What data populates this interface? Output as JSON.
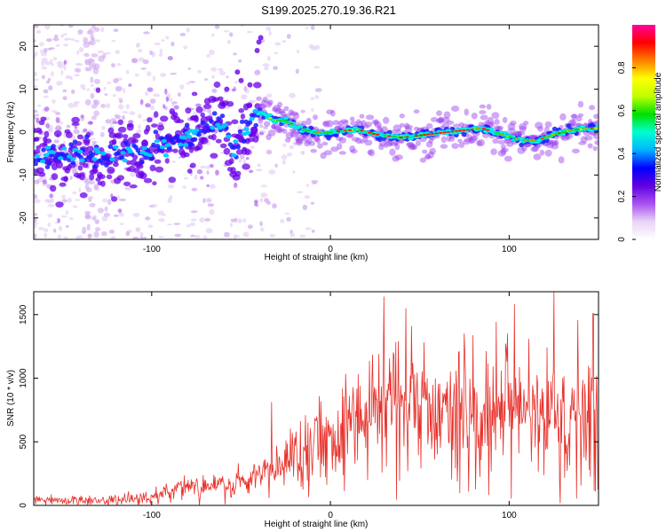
{
  "title": "S199.2025.270.19.36.R21",
  "chart_data": [
    {
      "type": "heatmap",
      "xlabel": "Height of straight line (km)",
      "ylabel": "Frequency (Hz)",
      "xlim": [
        -166,
        150
      ],
      "ylim": [
        -25,
        25
      ],
      "xticks": [
        -100,
        0,
        100
      ],
      "yticks": [
        -20,
        -10,
        0,
        10,
        20
      ],
      "colorbar": {
        "label": "Normalized spectral amplitude",
        "range": [
          0,
          1
        ],
        "ticks": [
          0,
          0.2,
          0.4,
          0.6,
          0.8
        ],
        "colors": [
          "#ffffff",
          "#e8d4f6",
          "#a850f0",
          "#6000e0",
          "#0000ff",
          "#00b4ff",
          "#00ffd0",
          "#00e000",
          "#c0ff00",
          "#ffff00",
          "#ff8000",
          "#ff0000",
          "#ff00a0"
        ]
      },
      "ridge_anchor_points": [
        {
          "x": -166,
          "y": -4.8
        },
        {
          "x": -150,
          "y": -5.1
        },
        {
          "x": -135,
          "y": -5.7
        },
        {
          "x": -120,
          "y": -5.6
        },
        {
          "x": -105,
          "y": -4.6
        },
        {
          "x": -90,
          "y": -2.9
        },
        {
          "x": -80,
          "y": -1.2
        },
        {
          "x": -70,
          "y": 0.8
        },
        {
          "x": -60,
          "y": 2.8
        },
        {
          "x": -55,
          "y": -4.5
        },
        {
          "x": -50,
          "y": -2.0
        },
        {
          "x": -42,
          "y": 3.8
        },
        {
          "x": -38,
          "y": 4.5
        },
        {
          "x": -32,
          "y": 2.8
        },
        {
          "x": -25,
          "y": 2.6
        },
        {
          "x": -15,
          "y": 0.6
        },
        {
          "x": -5,
          "y": -0.3
        },
        {
          "x": 5,
          "y": 0.2
        },
        {
          "x": 15,
          "y": 0.6
        },
        {
          "x": 25,
          "y": -0.5
        },
        {
          "x": 40,
          "y": -1.3
        },
        {
          "x": 55,
          "y": -0.5
        },
        {
          "x": 70,
          "y": 0.2
        },
        {
          "x": 85,
          "y": 0.9
        },
        {
          "x": 95,
          "y": -0.5
        },
        {
          "x": 105,
          "y": -1.7
        },
        {
          "x": 115,
          "y": -2.0
        },
        {
          "x": 125,
          "y": -0.6
        },
        {
          "x": 135,
          "y": 0.5
        },
        {
          "x": 150,
          "y": 1.0
        }
      ]
    },
    {
      "type": "line",
      "xlabel": "Height of straight line (km)",
      "ylabel": "SNR (10 * v/v)",
      "xlim": [
        -166,
        150
      ],
      "ylim": [
        0,
        1680
      ],
      "xticks": [
        -100,
        0,
        100
      ],
      "yticks": [
        0,
        500,
        1000,
        1500
      ],
      "color": "#e8302a",
      "trend_anchor_points": [
        {
          "x": -166,
          "y": 40
        },
        {
          "x": -120,
          "y": 40
        },
        {
          "x": -100,
          "y": 65
        },
        {
          "x": -85,
          "y": 120
        },
        {
          "x": -70,
          "y": 140
        },
        {
          "x": -55,
          "y": 165
        },
        {
          "x": -45,
          "y": 170
        },
        {
          "x": -40,
          "y": 260
        },
        {
          "x": -30,
          "y": 260
        },
        {
          "x": -20,
          "y": 420
        },
        {
          "x": -10,
          "y": 490
        },
        {
          "x": 0,
          "y": 530
        },
        {
          "x": 10,
          "y": 660
        },
        {
          "x": 20,
          "y": 740
        },
        {
          "x": 30,
          "y": 830
        },
        {
          "x": 40,
          "y": 760
        },
        {
          "x": 50,
          "y": 790
        },
        {
          "x": 60,
          "y": 780
        },
        {
          "x": 70,
          "y": 760
        },
        {
          "x": 80,
          "y": 620
        },
        {
          "x": 90,
          "y": 760
        },
        {
          "x": 100,
          "y": 790
        },
        {
          "x": 110,
          "y": 760
        },
        {
          "x": 120,
          "y": 750
        },
        {
          "x": 130,
          "y": 740
        },
        {
          "x": 140,
          "y": 730
        },
        {
          "x": 150,
          "y": 700
        }
      ],
      "peaks": [
        {
          "x": -33,
          "y": 810
        },
        {
          "x": 30,
          "y": 1640
        },
        {
          "x": 75,
          "y": 1350
        },
        {
          "x": 103,
          "y": 1580
        },
        {
          "x": 125,
          "y": 1680
        },
        {
          "x": 147,
          "y": 1510
        }
      ]
    }
  ]
}
